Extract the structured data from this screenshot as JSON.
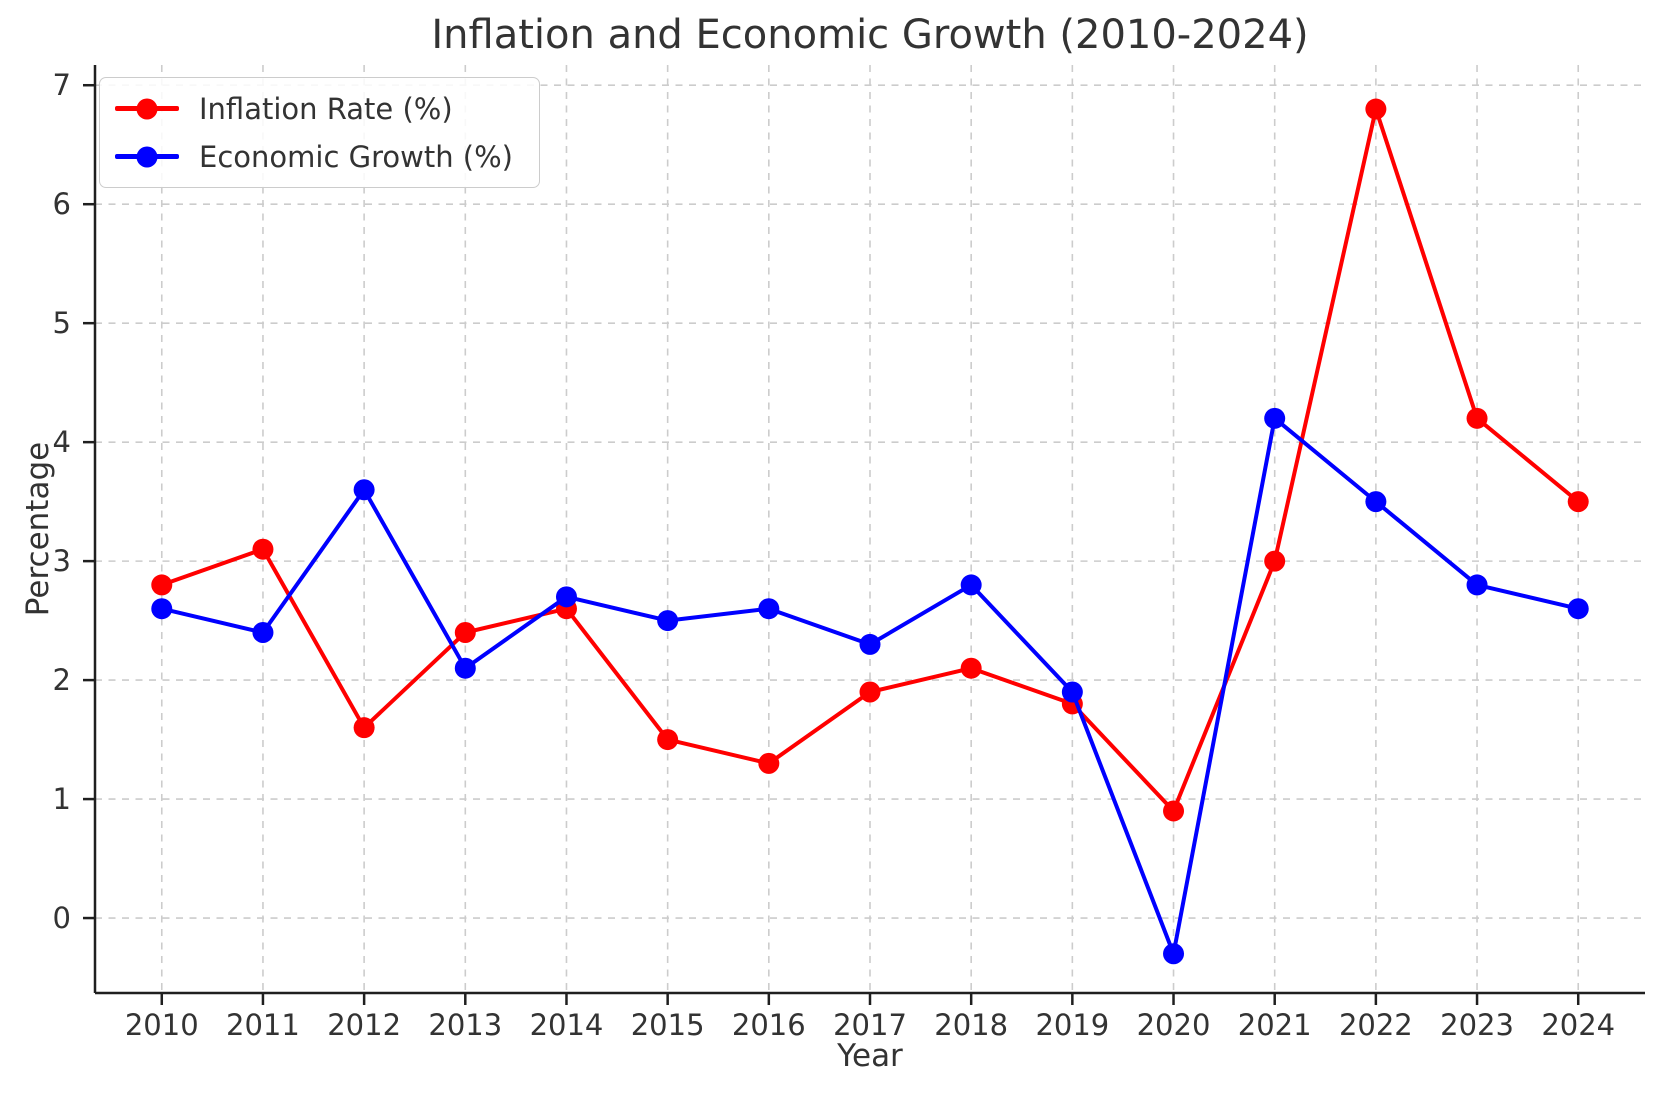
{
  "chart_data": {
    "type": "line",
    "title": "Inflation and Economic Growth (2010-2024)",
    "xlabel": "Year",
    "ylabel": "Percentage",
    "x": [
      2010,
      2011,
      2012,
      2013,
      2014,
      2015,
      2016,
      2017,
      2018,
      2019,
      2020,
      2021,
      2022,
      2023,
      2024
    ],
    "series": [
      {
        "name": "Inflation Rate (%)",
        "color": "#ff0000",
        "values": [
          2.8,
          3.1,
          1.6,
          2.4,
          2.6,
          1.5,
          1.3,
          1.9,
          2.1,
          1.8,
          0.9,
          3.0,
          6.8,
          4.2,
          3.5
        ]
      },
      {
        "name": "Economic Growth (%)",
        "color": "#0000ff",
        "values": [
          2.6,
          2.4,
          3.6,
          2.1,
          2.7,
          2.5,
          2.6,
          2.3,
          2.8,
          1.9,
          -0.3,
          4.2,
          3.5,
          2.8,
          2.6
        ]
      }
    ],
    "yticks": [
      0,
      1,
      2,
      3,
      4,
      5,
      6,
      7
    ],
    "xlim": [
      2009.34,
      2024.66
    ],
    "ylim": [
      -0.63,
      7.17
    ],
    "grid": true,
    "grid_style": "dashed",
    "legend_position": "upper-left",
    "marker": "circle"
  }
}
